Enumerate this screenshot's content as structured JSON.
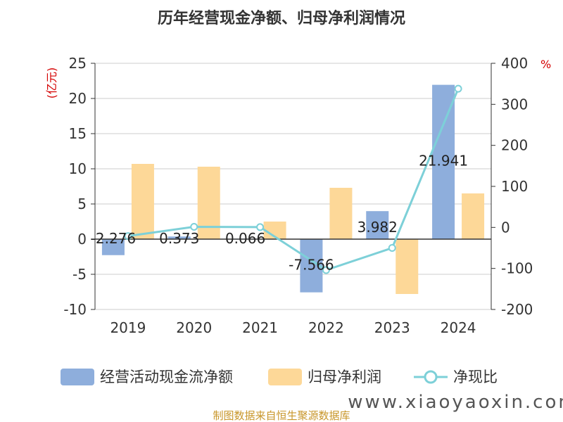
{
  "chart_data": {
    "type": "bar",
    "title": "历年经营现金净额、归母净利润情况",
    "categories": [
      "2019",
      "2020",
      "2021",
      "2022",
      "2023",
      "2024"
    ],
    "left_axis": {
      "unit": "(亿元)",
      "ticks": [
        "25",
        "20",
        "15",
        "10",
        "5",
        "0",
        "-5",
        "-10"
      ],
      "ylim": [
        -10,
        25
      ]
    },
    "right_axis": {
      "unit": "%",
      "ticks": [
        "400",
        "300",
        "200",
        "100",
        "0",
        "-100",
        "-200"
      ],
      "ylim": [
        -200,
        400
      ]
    },
    "series": [
      {
        "name": "经营活动现金流净额",
        "type": "bar",
        "axis": "left",
        "color": "#8eaedc",
        "values": [
          -2.276,
          0.373,
          0.066,
          -7.566,
          3.982,
          21.941
        ],
        "labels": [
          "-2.276",
          "0.373",
          "0.066",
          "-7.566",
          "3.982",
          "21.941"
        ]
      },
      {
        "name": "归母净利润",
        "type": "bar",
        "axis": "left",
        "color": "#fdd898",
        "values": [
          10.7,
          10.3,
          2.5,
          7.3,
          -7.8,
          6.5
        ]
      },
      {
        "name": "净现比",
        "type": "line",
        "axis": "right",
        "color": "#7dd0d8",
        "values": [
          -21,
          1.5,
          0.7,
          -104,
          -50,
          338
        ]
      }
    ],
    "legend_position": "bottom",
    "grid": true
  },
  "footer": {
    "source": "制图数据来自恒生聚源数据库"
  },
  "watermark": "www.xiaoyaoxin.com"
}
